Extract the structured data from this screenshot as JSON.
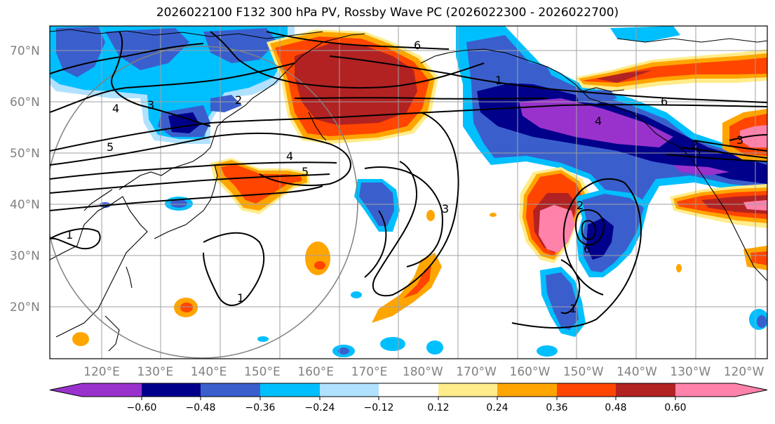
{
  "title": "2026022100 F132 300 hPa PV, Rossby Wave PC (2026022300 - 2026022700)",
  "lat_labels": [
    "70°N",
    "60°N",
    "50°N",
    "40°N",
    "30°N",
    "20°N"
  ],
  "lon_labels": [
    "120°E",
    "130°E",
    "140°E",
    "150°E",
    "160°E",
    "170°E",
    "180°W",
    "170°W",
    "160°W",
    "150°W",
    "140°W",
    "130°W",
    "120°W"
  ],
  "colorbar": {
    "colors": [
      "#9932cc",
      "#00008b",
      "#3a5fcd",
      "#00bfff",
      "#b0e2ff",
      "#ffffff",
      "#ffec8b",
      "#ffa500",
      "#ff4500",
      "#b22222",
      "#ff82ab"
    ],
    "tick_labels": [
      "−0.60",
      "−0.48",
      "−0.36",
      "−0.24",
      "−0.12",
      "0.12",
      "0.24",
      "0.36",
      "0.48",
      "0.60"
    ]
  },
  "contour_labels": [
    "6",
    "3",
    "2",
    "4",
    "5",
    "1",
    "4",
    "5",
    "3",
    "1",
    "6",
    "4",
    "2",
    "1",
    "3",
    "2",
    "6",
    "1",
    "1"
  ]
}
